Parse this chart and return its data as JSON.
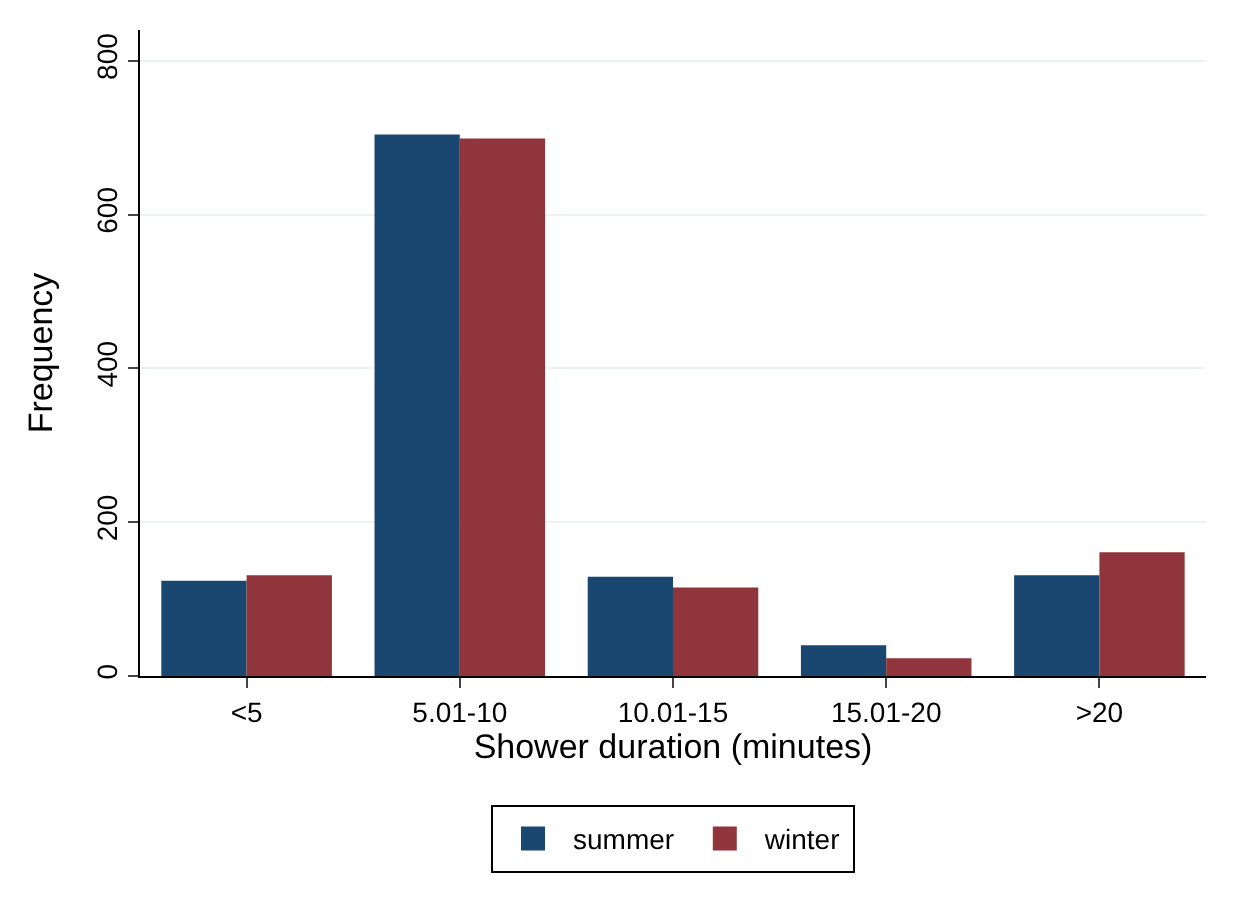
{
  "chart_data": {
    "type": "bar",
    "xlabel": "Shower duration (minutes)",
    "ylabel": "Frequency",
    "categories": [
      "<5",
      "5.01-10",
      "10.01-15",
      "15.01-20",
      ">20"
    ],
    "series": [
      {
        "name": "summer",
        "color": "#1a476f",
        "values": [
          124,
          704,
          129,
          40,
          131
        ]
      },
      {
        "name": "winter",
        "color": "#90353b",
        "values": [
          131,
          699,
          115,
          23,
          161
        ]
      }
    ],
    "ylim": [
      0,
      840
    ],
    "yticks": [
      0,
      200,
      400,
      600,
      800
    ],
    "grid": "y",
    "legend": "bottom"
  }
}
